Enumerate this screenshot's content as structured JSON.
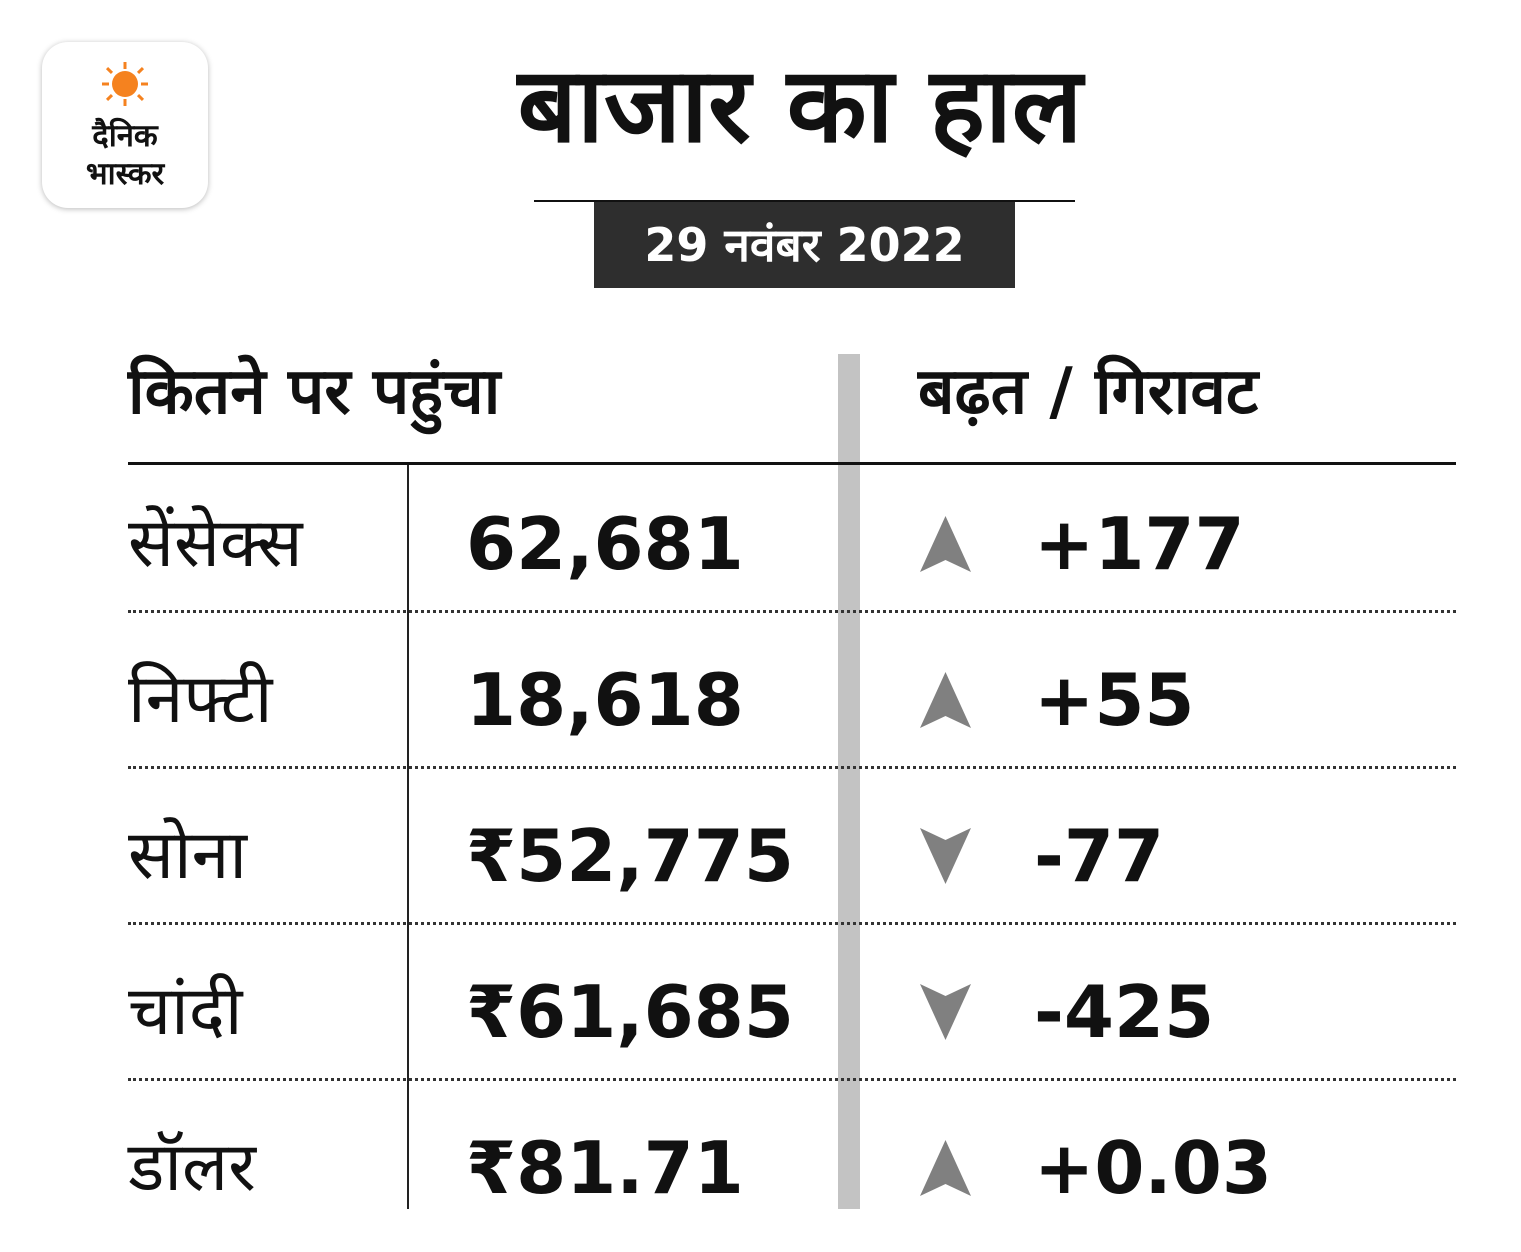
{
  "logo": {
    "line1": "दैनिक",
    "line2": "भास्कर",
    "sun_color": "#f5821f"
  },
  "title": "बाजार का हाल",
  "date": "29 नवंबर 2022",
  "headers": {
    "left": "कितने पर पहुंचा",
    "right": "बढ़त / गिरावट"
  },
  "colors": {
    "arrow": "#808080",
    "divider": "#c3c3c3",
    "date_bg": "#2e2e2e"
  },
  "rows": [
    {
      "name": "सेंसेक्स",
      "value": "62,681",
      "direction": "up",
      "change": "+177"
    },
    {
      "name": "निफ्टी",
      "value": "18,618",
      "direction": "up",
      "change": "+55"
    },
    {
      "name": "सोना",
      "value": "₹52,775",
      "direction": "down",
      "change": "-77"
    },
    {
      "name": "चांदी",
      "value": "₹61,685",
      "direction": "down",
      "change": "-425"
    },
    {
      "name": "डॉलर",
      "value": "₹81.71",
      "direction": "up",
      "change": "+0.03"
    }
  ]
}
